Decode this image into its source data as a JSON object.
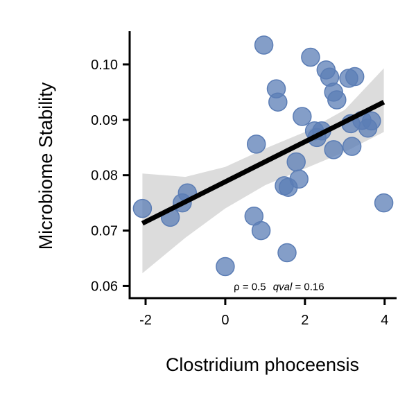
{
  "chart_data": {
    "type": "scatter",
    "title": "",
    "xlabel": "Clostridium phoceensis",
    "ylabel": "Microbiome Stability",
    "xlim": [
      -2.4,
      4.3
    ],
    "ylim": [
      0.0578,
      0.106
    ],
    "xticks": [
      -2,
      0,
      2,
      4
    ],
    "xtick_labels": [
      "-2",
      "0",
      "2",
      "4"
    ],
    "yticks": [
      0.06,
      0.07,
      0.08,
      0.09,
      0.1
    ],
    "ytick_labels": [
      "0.06",
      "0.07",
      "0.08",
      "0.09",
      "0.10"
    ],
    "grid": false,
    "point_color": "#5b7db5",
    "line_color": "#000000",
    "band_color": "#dcdcdc",
    "points": [
      {
        "x": 0.97,
        "y": 0.1035
      },
      {
        "x": 2.14,
        "y": 0.1013
      },
      {
        "x": 2.53,
        "y": 0.099
      },
      {
        "x": 2.62,
        "y": 0.0977
      },
      {
        "x": 3.1,
        "y": 0.0975
      },
      {
        "x": 3.25,
        "y": 0.0978
      },
      {
        "x": 1.28,
        "y": 0.0956
      },
      {
        "x": 2.72,
        "y": 0.095
      },
      {
        "x": 2.8,
        "y": 0.0936
      },
      {
        "x": 1.32,
        "y": 0.0932
      },
      {
        "x": 1.93,
        "y": 0.0906
      },
      {
        "x": 3.15,
        "y": 0.0893
      },
      {
        "x": 3.43,
        "y": 0.0899
      },
      {
        "x": 3.67,
        "y": 0.0898
      },
      {
        "x": 3.58,
        "y": 0.0885
      },
      {
        "x": 2.24,
        "y": 0.088
      },
      {
        "x": 2.42,
        "y": 0.088
      },
      {
        "x": 2.3,
        "y": 0.0868
      },
      {
        "x": 0.78,
        "y": 0.0856
      },
      {
        "x": 2.72,
        "y": 0.0846
      },
      {
        "x": 3.18,
        "y": 0.0852
      },
      {
        "x": 1.78,
        "y": 0.0824
      },
      {
        "x": 1.85,
        "y": 0.0793
      },
      {
        "x": 1.48,
        "y": 0.0781
      },
      {
        "x": 1.58,
        "y": 0.0778
      },
      {
        "x": -0.95,
        "y": 0.0768
      },
      {
        "x": -1.08,
        "y": 0.075
      },
      {
        "x": -2.08,
        "y": 0.074
      },
      {
        "x": -1.38,
        "y": 0.0724
      },
      {
        "x": 0.72,
        "y": 0.0726
      },
      {
        "x": 0.9,
        "y": 0.07
      },
      {
        "x": 3.98,
        "y": 0.075
      },
      {
        "x": 1.55,
        "y": 0.066
      },
      {
        "x": 0.0,
        "y": 0.0635
      }
    ],
    "fit_line": {
      "x": [
        -2.08,
        3.98
      ],
      "y": [
        0.0713,
        0.0932
      ]
    },
    "confidence_band": {
      "x": [
        -2.08,
        -1.0,
        0.0,
        1.0,
        2.0,
        3.0,
        3.98
      ],
      "upper": [
        0.0803,
        0.0797,
        0.0815,
        0.0848,
        0.0878,
        0.0918,
        0.0993
      ],
      "lower": [
        0.0623,
        0.0687,
        0.074,
        0.0782,
        0.0812,
        0.0842,
        0.0878
      ]
    },
    "annotation": {
      "rho_text": "ρ = 0.5",
      "q_label": "qval",
      "q_value_text": " = 0.16",
      "x": 1.0,
      "y": 0.0596
    }
  }
}
